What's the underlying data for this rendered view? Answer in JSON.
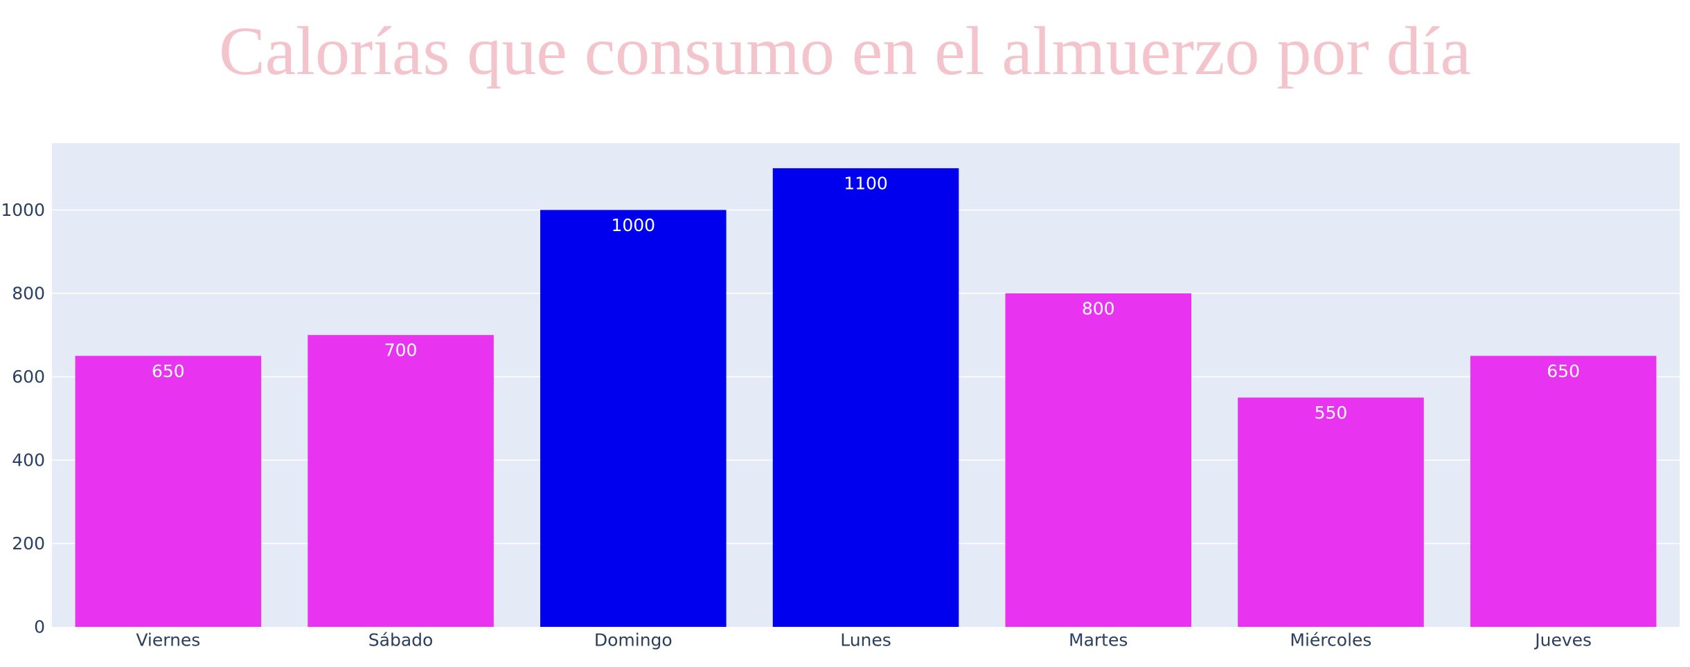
{
  "chart_data": {
    "type": "bar",
    "title": "Calorías que consumo en el almuerzo por día",
    "categories": [
      "Viernes",
      "Sábado",
      "Domingo",
      "Lunes",
      "Martes",
      "Miércoles",
      "Jueves"
    ],
    "values": [
      650,
      700,
      1000,
      1100,
      800,
      550,
      650
    ],
    "data_labels": [
      "650",
      "700",
      "1000",
      "1100",
      "800",
      "550",
      "650"
    ],
    "bar_colors": [
      "#e834f0",
      "#e834f0",
      "#0000ee",
      "#0000ee",
      "#e834f0",
      "#e834f0",
      "#e834f0"
    ],
    "ylim": [
      0,
      1160
    ],
    "yticks": [
      0,
      200,
      400,
      600,
      800,
      1000
    ],
    "ytick_labels": [
      "0",
      "200",
      "400",
      "600",
      "800",
      "1000"
    ],
    "xlabel": "",
    "ylabel": "",
    "grid": true,
    "legend": "none",
    "colors": {
      "title": "#f4c4cc",
      "plot_background": "#e5ebf6",
      "gridline": "#ffffff",
      "tick_text": "#2a3f5f",
      "label_text": "#ffffff"
    }
  }
}
